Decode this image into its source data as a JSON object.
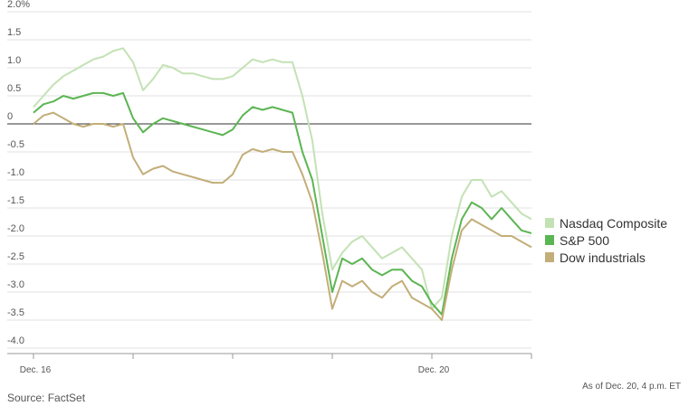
{
  "chart_data": {
    "type": "line",
    "categories": [
      "Dec. 16",
      null,
      null,
      null,
      null,
      null,
      null,
      null,
      null,
      null,
      null,
      null,
      null,
      null,
      null,
      null,
      null,
      null,
      null,
      null,
      null,
      null,
      null,
      null,
      null,
      null,
      null,
      null,
      null,
      null,
      null,
      null,
      null,
      null,
      null,
      null,
      null,
      null,
      null,
      null,
      "Dec. 20",
      null,
      null,
      null,
      null,
      null,
      null,
      null,
      null,
      null,
      null
    ],
    "series": [
      {
        "name": "Nasdaq Composite",
        "color": "#c3e2b4",
        "values": [
          0.3,
          0.5,
          0.7,
          0.85,
          0.95,
          1.05,
          1.15,
          1.2,
          1.3,
          1.35,
          1.1,
          0.6,
          0.8,
          1.05,
          1.0,
          0.9,
          0.9,
          0.85,
          0.8,
          0.8,
          0.85,
          1.0,
          1.15,
          1.1,
          1.15,
          1.1,
          1.1,
          0.5,
          -0.3,
          -1.6,
          -2.6,
          -2.3,
          -2.1,
          -2.0,
          -2.2,
          -2.4,
          -2.3,
          -2.2,
          -2.4,
          -2.6,
          -3.3,
          -3.1,
          -2.0,
          -1.3,
          -1.0,
          -1.0,
          -1.3,
          -1.2,
          -1.4,
          -1.6,
          -1.7
        ]
      },
      {
        "name": "S&P 500",
        "color": "#5cb553",
        "values": [
          0.2,
          0.35,
          0.4,
          0.5,
          0.45,
          0.5,
          0.55,
          0.55,
          0.5,
          0.55,
          0.1,
          -0.15,
          0.0,
          0.1,
          0.05,
          0.0,
          -0.05,
          -0.1,
          -0.15,
          -0.2,
          -0.1,
          0.15,
          0.3,
          0.25,
          0.3,
          0.25,
          0.2,
          -0.5,
          -1.0,
          -2.0,
          -3.0,
          -2.4,
          -2.5,
          -2.4,
          -2.6,
          -2.7,
          -2.6,
          -2.6,
          -2.8,
          -2.9,
          -3.2,
          -3.4,
          -2.4,
          -1.7,
          -1.4,
          -1.5,
          -1.7,
          -1.5,
          -1.7,
          -1.9,
          -1.95
        ]
      },
      {
        "name": "Dow industrials",
        "color": "#c2ae78",
        "values": [
          0.0,
          0.15,
          0.2,
          0.1,
          0.0,
          -0.05,
          0.0,
          0.0,
          -0.05,
          0.0,
          -0.6,
          -0.9,
          -0.8,
          -0.75,
          -0.85,
          -0.9,
          -0.95,
          -1.0,
          -1.05,
          -1.05,
          -0.9,
          -0.55,
          -0.45,
          -0.5,
          -0.45,
          -0.5,
          -0.5,
          -0.9,
          -1.4,
          -2.3,
          -3.3,
          -2.8,
          -2.9,
          -2.8,
          -3.0,
          -3.1,
          -2.9,
          -2.8,
          -3.1,
          -3.2,
          -3.3,
          -3.5,
          -2.6,
          -1.9,
          -1.7,
          -1.8,
          -1.9,
          -2.0,
          -2.0,
          -2.1,
          -2.2
        ]
      }
    ],
    "ylim": [
      -4,
      2
    ],
    "yticks": [
      {
        "value": 2,
        "label": "2.0%"
      },
      1.5,
      {
        "value": 1,
        "label": "1.0"
      },
      0.5,
      0,
      -0.5,
      {
        "value": -1,
        "label": "-1.0"
      },
      -1.5,
      {
        "value": -2,
        "label": "-2.0"
      },
      -2.5,
      {
        "value": -3,
        "label": "-3.0"
      },
      -3.5,
      {
        "value": -4,
        "label": "-4.0"
      }
    ],
    "grid": true,
    "legend": "right",
    "source": "Source: FactSet",
    "note": "As of Dec. 20, 4 p.m. ET"
  }
}
